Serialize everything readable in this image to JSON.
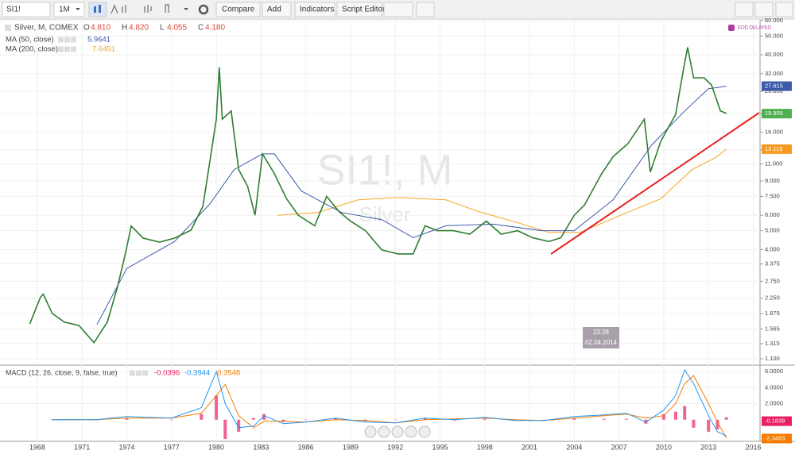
{
  "toolbar": {
    "symbol": "SI1!",
    "interval": "1M",
    "buttons": [
      "Compare",
      "Add",
      "Indicators",
      "Script Editor"
    ]
  },
  "main_pane": {
    "title": "Silver, M, COMEX",
    "ohlc": [
      {
        "label": "O",
        "value": "4.810"
      },
      {
        "label": "H",
        "value": "4.820"
      },
      {
        "label": "L",
        "value": "4.055"
      },
      {
        "label": "C",
        "value": "4.180"
      }
    ],
    "studies": [
      {
        "name": "MA (50, close)",
        "value": "5.9641",
        "color": "#3c5aa8"
      },
      {
        "name": "MA (200, close)",
        "value": "7.6451",
        "color": "#f5a623"
      }
    ],
    "badge": "EOD DELAYED",
    "watermark": "SI1!, M",
    "watermark_sub": "Silver",
    "log_scale": true,
    "ylim": [
      1.02,
      63.4
    ],
    "yticks": [
      {
        "value": 1.1,
        "label": "1.100"
      },
      {
        "value": 1.315,
        "label": "1.315"
      },
      {
        "value": 1.565,
        "label": "1.565"
      },
      {
        "value": 1.875,
        "label": "1.875"
      },
      {
        "value": 2.25,
        "label": "2.250"
      },
      {
        "value": 2.75,
        "label": "2.750"
      },
      {
        "value": 3.375,
        "label": "3.375"
      },
      {
        "value": 4,
        "label": "4.000"
      },
      {
        "value": 5,
        "label": "5.000"
      },
      {
        "value": 6,
        "label": "6.000"
      },
      {
        "value": 7.5,
        "label": "7.500"
      },
      {
        "value": 9,
        "label": "9.000"
      },
      {
        "value": 11,
        "label": "11.000"
      },
      {
        "value": 13,
        "label": "13.000"
      },
      {
        "value": 16,
        "label": "16.000"
      },
      {
        "value": 20,
        "label": "20.000"
      },
      {
        "value": 26,
        "label": "26.000"
      },
      {
        "value": 32,
        "label": "32.000"
      },
      {
        "value": 40,
        "label": "40.000"
      },
      {
        "value": 50,
        "label": "50.000"
      },
      {
        "value": 60,
        "label": "60.000"
      }
    ],
    "price": {
      "name": "Silver",
      "color": "#2e7d32",
      "x": [
        1967.5,
        1968.2,
        1968.4,
        1969.0,
        1969.8,
        1970.8,
        1971.8,
        1972.7,
        1973.4,
        1973.9,
        1974.3,
        1975.1,
        1976.2,
        1977.2,
        1978.3,
        1979.1,
        1979.6,
        1980.0,
        1980.2,
        1980.4,
        1981.0,
        1981.5,
        1982.1,
        1982.6,
        1983.1,
        1983.9,
        1984.7,
        1985.5,
        1986.6,
        1987.4,
        1988.2,
        1989.0,
        1990.0,
        1991.1,
        1992.2,
        1993.2,
        1994.0,
        1994.8,
        1995.9,
        1997.0,
        1998.1,
        1999.1,
        2000.2,
        2001.2,
        2002.3,
        2003.1,
        2004.0,
        2004.7,
        2005.8,
        2006.6,
        2007.6,
        2008.7,
        2009.1,
        2009.8,
        2010.8,
        2011.3,
        2011.6,
        2012.0,
        2012.7,
        2013.2,
        2013.8,
        2014.2
      ],
      "values": [
        1.66,
        2.27,
        2.36,
        1.88,
        1.7,
        1.63,
        1.33,
        1.7,
        2.61,
        3.8,
        5.28,
        4.58,
        4.37,
        4.58,
        5.03,
        6.67,
        11.7,
        18.7,
        34.5,
        18.7,
        20.6,
        10.3,
        8.44,
        6.0,
        12.4,
        9.8,
        7.33,
        6.0,
        5.3,
        7.5,
        6.3,
        5.6,
        5.0,
        3.98,
        3.8,
        3.8,
        5.3,
        5.0,
        5.0,
        4.8,
        5.6,
        4.8,
        5.0,
        4.6,
        4.4,
        4.6,
        6.0,
        6.8,
        9.7,
        12.0,
        14.0,
        18.7,
        10.0,
        14.4,
        19.8,
        33.0,
        43.7,
        30.5,
        30.5,
        28.0,
        20.6,
        20.0
      ]
    },
    "ma50": {
      "x": [
        1972.0,
        1974.0,
        1977.2,
        1979.6,
        1981.2,
        1983.1,
        1983.9,
        1985.7,
        1988.4,
        1991.1,
        1993.2,
        1995.4,
        1998.6,
        2001.8,
        2004.0,
        2006.6,
        2009.2,
        2011.4,
        2013.0,
        2014.2
      ],
      "values": [
        1.65,
        3.2,
        4.4,
        6.9,
        10.3,
        12.4,
        12.4,
        8.0,
        6.2,
        5.7,
        4.6,
        5.3,
        5.4,
        5.0,
        5.0,
        7.2,
        13.8,
        20.6,
        26.8,
        27.6
      ]
    },
    "ma200": {
      "x": [
        1984.1,
        1986.8,
        1989.5,
        1992.2,
        1995.4,
        1997.5,
        2000.2,
        2002.3,
        2004.4,
        2007.1,
        2009.8,
        2011.9,
        2013.5,
        2014.2
      ],
      "values": [
        6.0,
        6.2,
        7.2,
        7.4,
        7.2,
        6.3,
        5.5,
        4.9,
        4.9,
        6.0,
        7.3,
        10.3,
        11.9,
        13.1
      ]
    },
    "axis_labels": [
      {
        "value": 27.615,
        "label": "27.615",
        "color": "#3c5aa8"
      },
      {
        "value": 19.955,
        "label": "19.955",
        "color": "#4caf50"
      },
      {
        "value": 13.115,
        "label": "13.115",
        "color": "#f59a23"
      }
    ],
    "cursor": {
      "time": "23:28",
      "date": "02.04.2014"
    }
  },
  "macd_pane": {
    "title": "MACD (12, 26, close, 9, false, true)",
    "legend_values": [
      {
        "value": "-0.0396",
        "color": "#e91e63"
      },
      {
        "value": "-0.3944",
        "color": "#2196f3"
      },
      {
        "value": "-0.3548",
        "color": "#f57c00"
      }
    ],
    "ylim": [
      -2.4,
      6.5
    ],
    "yticks": [
      {
        "value": 2,
        "label": "2.0000"
      },
      {
        "value": 4,
        "label": "4.0000"
      },
      {
        "value": 6,
        "label": "6.0000"
      }
    ],
    "axis_labels": [
      {
        "value": -0.1839,
        "label": "-0.1839",
        "color": "#e91e63"
      },
      {
        "value": -2.3463,
        "label": "-2.3463",
        "color": "#f57c00"
      }
    ],
    "x": [
      1969,
      1972,
      1974,
      1977,
      1979,
      1980,
      1980.6,
      1981.5,
      1982.5,
      1983.2,
      1984.5,
      1986,
      1988,
      1990,
      1992,
      1994,
      1996,
      1998,
      2000,
      2002,
      2004,
      2006,
      2007.5,
      2008.8,
      2010,
      2010.8,
      2011.4,
      2012,
      2013,
      2013.6,
      2014.2
    ],
    "macd": {
      "color": "#2196f3",
      "values": [
        0,
        0,
        0.4,
        0.2,
        1.5,
        6.0,
        2.0,
        -1.0,
        -0.8,
        0.5,
        -0.5,
        -0.3,
        0.2,
        -0.3,
        -0.4,
        0.2,
        0,
        0.3,
        -0.1,
        -0.1,
        0.4,
        0.6,
        0.8,
        -0.3,
        1.2,
        3.0,
        6.2,
        4.5,
        0.5,
        -1.5,
        -2.0
      ]
    },
    "signal": {
      "color": "#f57c00",
      "values": [
        0,
        0,
        0.2,
        0.2,
        0.8,
        3.0,
        4.4,
        0.5,
        -1.0,
        -0.2,
        -0.2,
        -0.3,
        0,
        -0.1,
        -0.4,
        0,
        0.1,
        0.2,
        0,
        -0.1,
        0.2,
        0.5,
        0.7,
        0.2,
        0.5,
        2.0,
        4.5,
        5.5,
        2.0,
        -0.3,
        -2.3
      ]
    },
    "histogram": {
      "color": "#f06292",
      "values": [
        0,
        0,
        0.2,
        0,
        0.7,
        3.0,
        -2.4,
        -1.5,
        0.2,
        0.7,
        -0.3,
        0,
        0.2,
        -0.2,
        0,
        0.2,
        -0.1,
        0.1,
        -0.1,
        0,
        0.2,
        0.1,
        0.1,
        -0.5,
        0.7,
        1.0,
        1.7,
        -1.0,
        -1.5,
        -1.2,
        0.3
      ]
    }
  },
  "x_axis": {
    "xlim": [
      1965.5,
      2016.4
    ],
    "xticks": [
      1968,
      1971,
      1974,
      1977,
      1980,
      1983,
      1986,
      1989,
      1992,
      1995,
      1998,
      2001,
      2004,
      2007,
      2010,
      2013,
      2016
    ]
  }
}
